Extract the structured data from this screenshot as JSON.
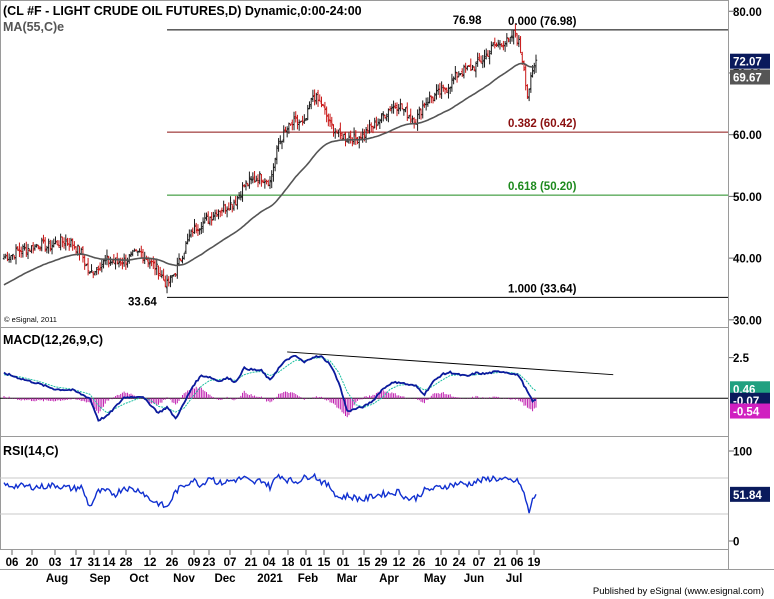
{
  "price_panel": {
    "title": "(CL #F - LIGHT CRUDE OIL FUTURES,D) Dynamic,0:00-24:00",
    "ma_label": "MA(55,C)e",
    "copyright": "© eSignal, 2011"
  },
  "macd_panel": {
    "title": "MACD(12,26,9,C)"
  },
  "rsi_panel": {
    "title": "RSI(14,C)"
  },
  "footer": {
    "published": "Published by eSignal (www.esignal.com)"
  },
  "colors": {
    "candle_up": "#1c1c1c",
    "candle_down": "#c81616",
    "ma": "#555555",
    "fib_0": "#000000",
    "fib_382": "#8b1010",
    "fib_618": "#1e8a1e",
    "fib_100": "#000000",
    "macd_line": "#0a1a9c",
    "signal_line": "#1bbfa0",
    "histogram": "#c020b0",
    "rsi_line": "#1030d0",
    "badge_dark": "#0a1a5c",
    "badge_teal": "#20a080",
    "badge_magenta": "#d020c0"
  },
  "chart_data": [
    {
      "type": "candlestick",
      "title": "(CL #F - LIGHT CRUDE OIL FUTURES,D) Dynamic,0:00-24:00",
      "y_axis_ticks": [
        30,
        40,
        50,
        60,
        70,
        80
      ],
      "y_axis_tick_labels": [
        "30.00",
        "40.00",
        "50.00",
        "60.00",
        "70.00",
        "80.00"
      ],
      "ylim": [
        29,
        81.5
      ],
      "x_tick_labels": [
        "06",
        "20",
        "03",
        "17",
        "31",
        "14",
        "28",
        "12",
        "26",
        "09",
        "23",
        "07",
        "21",
        "04",
        "18",
        "01",
        "15",
        "01",
        "15",
        "29",
        "12",
        "26",
        "10",
        "24",
        "07",
        "21",
        "06",
        "19"
      ],
      "month_labels": [
        "Aug",
        "Sep",
        "Oct",
        "Nov",
        "Dec",
        "2021",
        "Feb",
        "Mar",
        "Apr",
        "May",
        "Jun",
        "Jul"
      ],
      "anchor_closes": [
        [
          0,
          40.2
        ],
        [
          5,
          40.6
        ],
        [
          10,
          41.4
        ],
        [
          15,
          41.6
        ],
        [
          20,
          42.3
        ],
        [
          25,
          41.8
        ],
        [
          30,
          42.4
        ],
        [
          35,
          42.8
        ],
        [
          40,
          42.3
        ],
        [
          45,
          40.8
        ],
        [
          50,
          37.4
        ],
        [
          55,
          38.8
        ],
        [
          60,
          39.6
        ],
        [
          65,
          39.2
        ],
        [
          70,
          39.6
        ],
        [
          75,
          40.4
        ],
        [
          80,
          40.9
        ],
        [
          85,
          39.4
        ],
        [
          90,
          38.0
        ],
        [
          95,
          35.6
        ],
        [
          100,
          37.9
        ],
        [
          105,
          41.4
        ],
        [
          110,
          44.6
        ],
        [
          115,
          45.6
        ],
        [
          120,
          46.6
        ],
        [
          125,
          47.8
        ],
        [
          130,
          48.4
        ],
        [
          135,
          49.3
        ],
        [
          140,
          51.8
        ],
        [
          145,
          52.6
        ],
        [
          150,
          53.2
        ],
        [
          155,
          52.4
        ],
        [
          160,
          58.6
        ],
        [
          165,
          60.9
        ],
        [
          170,
          62.2
        ],
        [
          175,
          61.6
        ],
        [
          180,
          66.3
        ],
        [
          185,
          64.9
        ],
        [
          190,
          61.7
        ],
        [
          195,
          60.0
        ],
        [
          200,
          59.6
        ],
        [
          205,
          59.3
        ],
        [
          210,
          60.2
        ],
        [
          215,
          61.4
        ],
        [
          220,
          62.8
        ],
        [
          225,
          64.4
        ],
        [
          230,
          64.9
        ],
        [
          235,
          63.4
        ],
        [
          240,
          62.3
        ],
        [
          245,
          65.2
        ],
        [
          250,
          66.2
        ],
        [
          255,
          66.9
        ],
        [
          260,
          68.3
        ],
        [
          265,
          70.1
        ],
        [
          270,
          70.6
        ],
        [
          275,
          71.2
        ],
        [
          280,
          72.6
        ],
        [
          285,
          74.3
        ],
        [
          290,
          74.9
        ],
        [
          295,
          75.1
        ],
        [
          297,
          76.98
        ],
        [
          300,
          74.8
        ],
        [
          303,
          71.0
        ],
        [
          305,
          66.4
        ],
        [
          307,
          68.8
        ],
        [
          310,
          72.07
        ]
      ],
      "moving_average": {
        "label": "MA(55,C)e",
        "current": 69.67
      },
      "current_close": 72.07,
      "annotations": [
        "76.98",
        "33.64"
      ],
      "fibonacci_levels": [
        {
          "ratio": "0.000",
          "price": 76.98,
          "label": "0.000 (76.98)"
        },
        {
          "ratio": "0.382",
          "price": 60.42,
          "label": "0.382 (60.42)"
        },
        {
          "ratio": "0.618",
          "price": 50.2,
          "label": "0.618 (50.20)"
        },
        {
          "ratio": "1.000",
          "price": 33.64,
          "label": "1.000 (33.64)"
        }
      ],
      "last_value_badges": [
        "72.07",
        "69.67"
      ]
    },
    {
      "type": "line",
      "title": "MACD(12,26,9,C)",
      "y_axis_tick_labels": [
        "2.5"
      ],
      "ylim": [
        -2.2,
        4.2
      ],
      "series": [
        {
          "name": "MACD",
          "current": -0.07
        },
        {
          "name": "Signal",
          "current": 0.46
        },
        {
          "name": "Histogram",
          "current": -0.54
        }
      ],
      "macd_anchors": [
        [
          0,
          1.55
        ],
        [
          10,
          1.2
        ],
        [
          20,
          0.9
        ],
        [
          30,
          0.55
        ],
        [
          40,
          0.5
        ],
        [
          50,
          0.0
        ],
        [
          55,
          -1.35
        ],
        [
          60,
          -1.1
        ],
        [
          70,
          0.05
        ],
        [
          80,
          0.12
        ],
        [
          85,
          -0.35
        ],
        [
          90,
          -0.9
        ],
        [
          95,
          -0.55
        ],
        [
          100,
          -1.25
        ],
        [
          105,
          -0.3
        ],
        [
          110,
          0.75
        ],
        [
          115,
          1.4
        ],
        [
          120,
          1.3
        ],
        [
          125,
          1.05
        ],
        [
          130,
          1.25
        ],
        [
          135,
          1.0
        ],
        [
          140,
          1.85
        ],
        [
          145,
          1.75
        ],
        [
          150,
          1.7
        ],
        [
          155,
          1.1
        ],
        [
          160,
          1.85
        ],
        [
          165,
          2.4
        ],
        [
          170,
          2.6
        ],
        [
          175,
          2.2
        ],
        [
          180,
          2.55
        ],
        [
          185,
          2.55
        ],
        [
          190,
          2.1
        ],
        [
          195,
          1.0
        ],
        [
          200,
          -0.8
        ],
        [
          205,
          -0.65
        ],
        [
          210,
          -0.5
        ],
        [
          215,
          -0.15
        ],
        [
          220,
          0.5
        ],
        [
          225,
          0.9
        ],
        [
          230,
          1.0
        ],
        [
          235,
          0.85
        ],
        [
          240,
          0.75
        ],
        [
          245,
          0.25
        ],
        [
          250,
          1.0
        ],
        [
          255,
          1.45
        ],
        [
          260,
          1.6
        ],
        [
          265,
          1.45
        ],
        [
          270,
          1.35
        ],
        [
          275,
          1.55
        ],
        [
          280,
          1.5
        ],
        [
          285,
          1.6
        ],
        [
          290,
          1.65
        ],
        [
          295,
          1.55
        ],
        [
          300,
          1.4
        ],
        [
          305,
          0.4
        ],
        [
          308,
          -0.2
        ],
        [
          310,
          -0.07
        ]
      ],
      "signal_anchors": [
        [
          0,
          1.45
        ],
        [
          10,
          1.3
        ],
        [
          20,
          1.05
        ],
        [
          30,
          0.7
        ],
        [
          40,
          0.55
        ],
        [
          50,
          0.25
        ],
        [
          55,
          -0.45
        ],
        [
          60,
          -0.9
        ],
        [
          70,
          -0.35
        ],
        [
          80,
          0.05
        ],
        [
          85,
          -0.1
        ],
        [
          90,
          -0.5
        ],
        [
          95,
          -0.6
        ],
        [
          100,
          -0.85
        ],
        [
          105,
          -0.6
        ],
        [
          110,
          0.1
        ],
        [
          115,
          0.75
        ],
        [
          120,
          1.1
        ],
        [
          125,
          1.15
        ],
        [
          130,
          1.2
        ],
        [
          135,
          1.1
        ],
        [
          140,
          1.45
        ],
        [
          145,
          1.6
        ],
        [
          150,
          1.65
        ],
        [
          155,
          1.4
        ],
        [
          160,
          1.6
        ],
        [
          165,
          2.0
        ],
        [
          170,
          2.35
        ],
        [
          175,
          2.3
        ],
        [
          180,
          2.45
        ],
        [
          185,
          2.5
        ],
        [
          190,
          2.3
        ],
        [
          195,
          1.6
        ],
        [
          200,
          0.4
        ],
        [
          205,
          -0.4
        ],
        [
          210,
          -0.55
        ],
        [
          215,
          -0.35
        ],
        [
          220,
          0.0
        ],
        [
          225,
          0.55
        ],
        [
          230,
          0.8
        ],
        [
          235,
          0.85
        ],
        [
          240,
          0.8
        ],
        [
          245,
          0.5
        ],
        [
          250,
          0.75
        ],
        [
          255,
          1.1
        ],
        [
          260,
          1.4
        ],
        [
          265,
          1.45
        ],
        [
          270,
          1.4
        ],
        [
          275,
          1.45
        ],
        [
          280,
          1.5
        ],
        [
          285,
          1.55
        ],
        [
          290,
          1.6
        ],
        [
          295,
          1.58
        ],
        [
          300,
          1.5
        ],
        [
          305,
          1.0
        ],
        [
          308,
          0.6
        ],
        [
          310,
          0.46
        ]
      ],
      "trendline": {
        "from": [
          165,
          2.85
        ],
        "to": [
          355,
          1.45
        ]
      },
      "last_value_badges": [
        "0.46",
        "-0.07",
        "-0.54"
      ]
    },
    {
      "type": "line",
      "title": "RSI(14,C)",
      "y_axis_tick_labels": [
        "100",
        "0"
      ],
      "ylim": [
        0,
        100
      ],
      "reference_levels": [
        70,
        30
      ],
      "anchors": [
        [
          0,
          62
        ],
        [
          10,
          61
        ],
        [
          20,
          60
        ],
        [
          30,
          62
        ],
        [
          40,
          58
        ],
        [
          45,
          60
        ],
        [
          50,
          38
        ],
        [
          55,
          55
        ],
        [
          60,
          55
        ],
        [
          65,
          52
        ],
        [
          70,
          60
        ],
        [
          75,
          57
        ],
        [
          80,
          56
        ],
        [
          85,
          46
        ],
        [
          90,
          42
        ],
        [
          95,
          37
        ],
        [
          100,
          55
        ],
        [
          105,
          62
        ],
        [
          110,
          68
        ],
        [
          115,
          62
        ],
        [
          120,
          72
        ],
        [
          125,
          64
        ],
        [
          130,
          66
        ],
        [
          135,
          68
        ],
        [
          140,
          70
        ],
        [
          145,
          64
        ],
        [
          150,
          68
        ],
        [
          155,
          60
        ],
        [
          160,
          74
        ],
        [
          165,
          68
        ],
        [
          170,
          66
        ],
        [
          175,
          70
        ],
        [
          180,
          74
        ],
        [
          185,
          66
        ],
        [
          190,
          60
        ],
        [
          195,
          48
        ],
        [
          200,
          50
        ],
        [
          205,
          48
        ],
        [
          210,
          46
        ],
        [
          215,
          50
        ],
        [
          220,
          52
        ],
        [
          225,
          53
        ],
        [
          230,
          55
        ],
        [
          235,
          47
        ],
        [
          240,
          48
        ],
        [
          245,
          56
        ],
        [
          250,
          58
        ],
        [
          255,
          60
        ],
        [
          260,
          62
        ],
        [
          265,
          64
        ],
        [
          270,
          63
        ],
        [
          275,
          66
        ],
        [
          280,
          68
        ],
        [
          285,
          70
        ],
        [
          290,
          68
        ],
        [
          295,
          67
        ],
        [
          300,
          66
        ],
        [
          303,
          52
        ],
        [
          306,
          32
        ],
        [
          308,
          45
        ],
        [
          310,
          51.84
        ]
      ],
      "current": 51.84,
      "last_value_badges": [
        "51.84"
      ]
    }
  ]
}
